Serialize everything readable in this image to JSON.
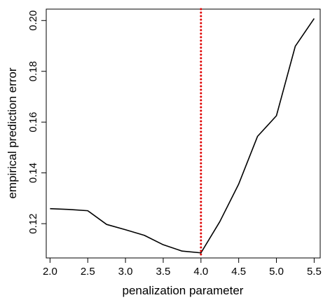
{
  "chart_data": {
    "type": "line",
    "title": "",
    "xlabel": "penalization parameter",
    "ylabel": "empirical prediction error",
    "xlim": [
      1.95,
      5.58
    ],
    "ylim": [
      0.1065,
      0.2045
    ],
    "x_ticks": [
      2.0,
      2.5,
      3.0,
      3.5,
      4.0,
      4.5,
      5.0,
      5.5
    ],
    "x_tick_labels": [
      "2.0",
      "2.5",
      "3.0",
      "3.5",
      "4.0",
      "4.5",
      "5.0",
      "5.5"
    ],
    "y_ticks": [
      0.12,
      0.14,
      0.16,
      0.18,
      0.2
    ],
    "y_tick_labels": [
      "0.12",
      "0.14",
      "0.16",
      "0.18",
      "0.20"
    ],
    "grid": false,
    "series": [
      {
        "x": [
          2.0,
          2.25,
          2.5,
          2.75,
          3.0,
          3.25,
          3.5,
          3.75,
          4.0,
          4.25,
          4.5,
          4.75,
          5.0,
          5.25,
          5.5
        ],
        "y": [
          0.1259,
          0.1256,
          0.1251,
          0.1197,
          0.1176,
          0.1154,
          0.1117,
          0.1092,
          0.1085,
          0.1208,
          0.1356,
          0.1544,
          0.1625,
          0.1899,
          0.2008
        ],
        "color": "#000000"
      }
    ],
    "reference_line": {
      "orientation": "vertical",
      "x": 4.0,
      "color": "#e00000",
      "style": "dotted"
    }
  }
}
